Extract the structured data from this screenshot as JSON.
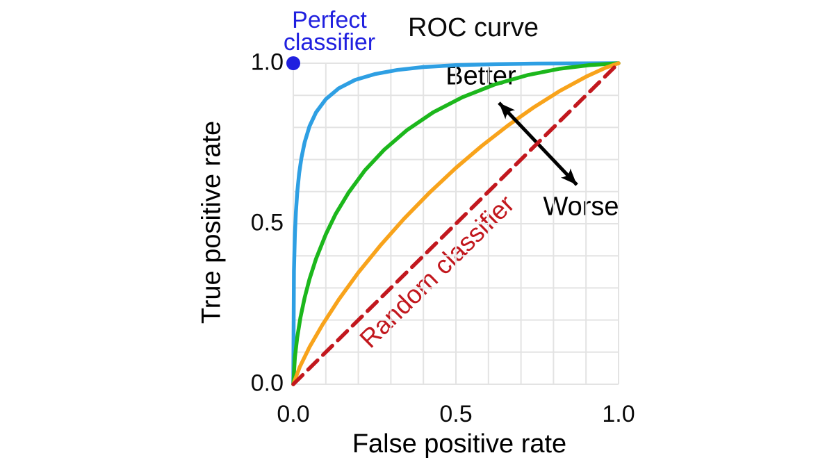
{
  "figure": {
    "title": "ROC curve",
    "annotations": {
      "perfect_line1": "Perfect",
      "perfect_line2": "classifier",
      "better": "Better",
      "worse": "Worse",
      "random": "Random classifier"
    }
  },
  "chart_data": {
    "type": "line",
    "title": "ROC curve",
    "xlabel": "False positive rate",
    "ylabel": "True positive rate",
    "xlim": [
      0,
      1
    ],
    "ylim": [
      0,
      1
    ],
    "x_tick_values": [
      0.0,
      0.5,
      1.0
    ],
    "y_tick_values": [
      0.0,
      0.5,
      1.0
    ],
    "x_ticks": [
      "0.0",
      "0.5",
      "1.0"
    ],
    "y_ticks": [
      "1.0",
      "0.5",
      "0.0"
    ],
    "grid": {
      "step": 0.1,
      "color": "#E3E3E3",
      "width": 2
    },
    "legend": "none",
    "series": [
      {
        "id": "blue-roc-curve",
        "color": "#2E9FE3",
        "width": 5.5,
        "layer": "pre",
        "points": [
          [
            0,
            0
          ],
          [
            0.002,
            0.353
          ],
          [
            0.005,
            0.47
          ],
          [
            0.008,
            0.536
          ],
          [
            0.012,
            0.596
          ],
          [
            0.018,
            0.657
          ],
          [
            0.025,
            0.705
          ],
          [
            0.035,
            0.754
          ],
          [
            0.05,
            0.804
          ],
          [
            0.07,
            0.847
          ],
          [
            0.1,
            0.888
          ],
          [
            0.14,
            0.922
          ],
          [
            0.19,
            0.948
          ],
          [
            0.25,
            0.966
          ],
          [
            0.32,
            0.979
          ],
          [
            0.4,
            0.988
          ],
          [
            0.5,
            0.994
          ],
          [
            0.62,
            0.997
          ],
          [
            0.75,
            0.999
          ],
          [
            1,
            1
          ]
        ]
      },
      {
        "id": "green-roc-curve",
        "color": "#1CB71C",
        "width": 5.5,
        "layer": "pre",
        "points": [
          [
            0,
            0
          ],
          [
            0.005,
            0.084
          ],
          [
            0.012,
            0.145
          ],
          [
            0.022,
            0.208
          ],
          [
            0.035,
            0.27
          ],
          [
            0.05,
            0.328
          ],
          [
            0.07,
            0.391
          ],
          [
            0.1,
            0.467
          ],
          [
            0.13,
            0.53
          ],
          [
            0.17,
            0.597
          ],
          [
            0.22,
            0.666
          ],
          [
            0.28,
            0.731
          ],
          [
            0.35,
            0.792
          ],
          [
            0.43,
            0.847
          ],
          [
            0.52,
            0.894
          ],
          [
            0.62,
            0.934
          ],
          [
            0.72,
            0.963
          ],
          [
            0.82,
            0.983
          ],
          [
            0.91,
            0.994
          ],
          [
            1,
            1
          ]
        ]
      },
      {
        "id": "orange-roc-curve",
        "color": "#F8A31B",
        "width": 5.5,
        "layer": "pre",
        "points": [
          [
            0,
            0
          ],
          [
            0.02,
            0.054
          ],
          [
            0.05,
            0.116
          ],
          [
            0.09,
            0.186
          ],
          [
            0.14,
            0.264
          ],
          [
            0.2,
            0.348
          ],
          [
            0.27,
            0.435
          ],
          [
            0.34,
            0.515
          ],
          [
            0.42,
            0.598
          ],
          [
            0.5,
            0.674
          ],
          [
            0.58,
            0.743
          ],
          [
            0.66,
            0.806
          ],
          [
            0.74,
            0.863
          ],
          [
            0.82,
            0.914
          ],
          [
            0.9,
            0.958
          ],
          [
            0.96,
            0.986
          ],
          [
            1,
            1
          ]
        ]
      },
      {
        "id": "random-classifier-line",
        "color": "#C2181E",
        "width": 5.5,
        "dash": [
          19,
          11
        ],
        "layer": "post",
        "points": [
          [
            0,
            0
          ],
          [
            1,
            1
          ]
        ]
      }
    ],
    "markers": [
      {
        "id": "perfect-classifier-point",
        "x": 0,
        "y": 1,
        "r": 10,
        "color": "#2020DF"
      }
    ],
    "annotations": [
      {
        "id": "better-worse-arrow",
        "text": "",
        "from_xy": [
          0.632,
          0.872
        ],
        "to_xy": [
          0.872,
          0.619
        ]
      },
      {
        "id": "better-label",
        "text": "Better",
        "xy": [
          0.577,
          0.959
        ]
      },
      {
        "id": "worse-label",
        "text": "Worse",
        "xy": [
          0.885,
          0.552
        ]
      },
      {
        "id": "random-classifier-label",
        "text": "Random classifier",
        "xy": [
          0.442,
          0.351
        ],
        "rotation_deg": -44.6
      },
      {
        "id": "perfect-classifier-label",
        "text": "Perfect classifier",
        "xy": [
          0.111,
          1.17
        ]
      }
    ]
  }
}
